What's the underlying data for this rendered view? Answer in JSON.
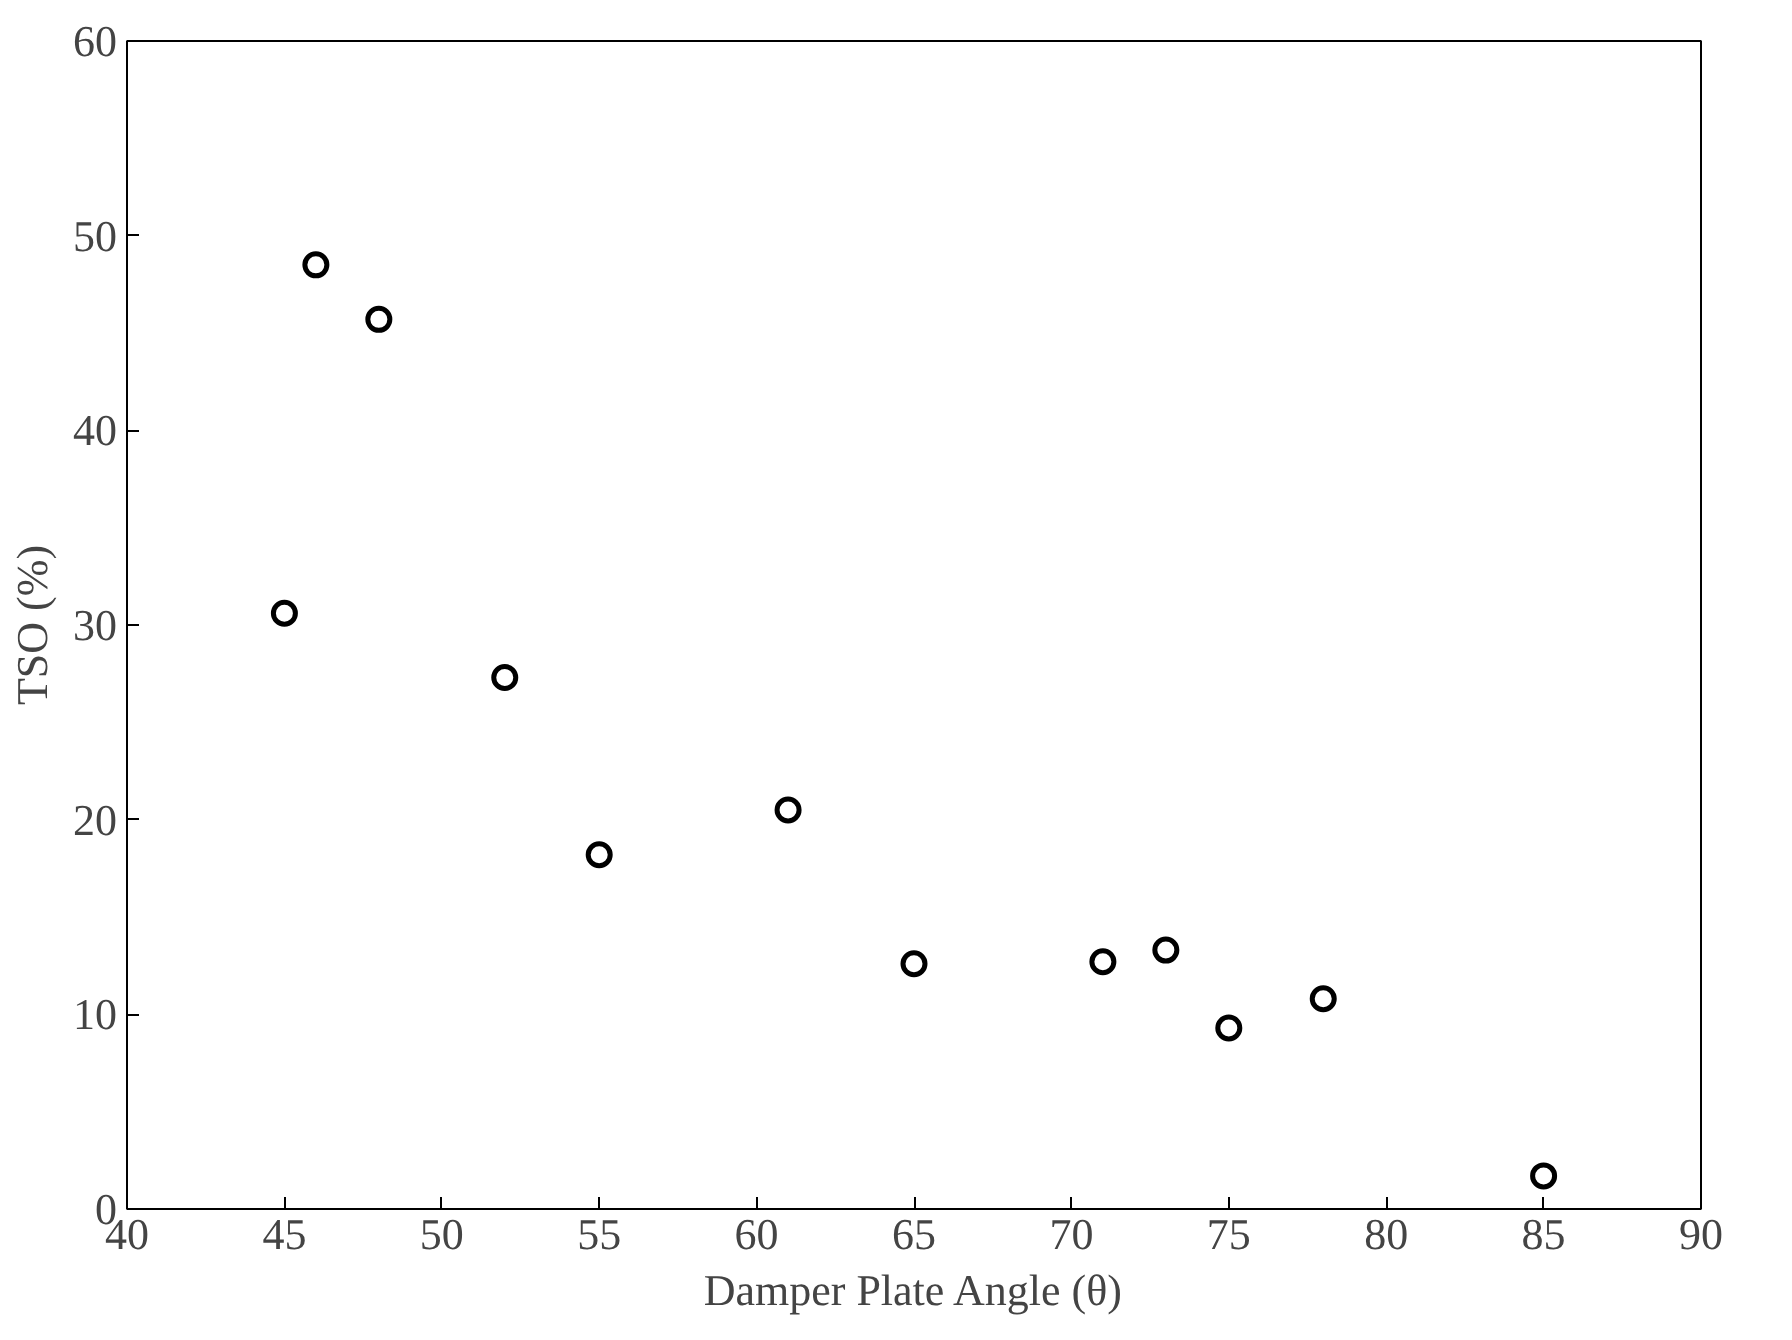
{
  "chart_data": {
    "type": "scatter",
    "xlabel": "Damper Plate Angle (θ)",
    "ylabel": "TSO (%)",
    "x": [
      45,
      46,
      48,
      52,
      55,
      61,
      65,
      71,
      73,
      75,
      78,
      85
    ],
    "series": [
      {
        "color": "#000000",
        "values": [
          30.6,
          48.5,
          45.7,
          27.3,
          18.2,
          20.5,
          12.6,
          12.7,
          13.3,
          9.3,
          10.8,
          1.7
        ]
      }
    ],
    "xlim": [
      40,
      90
    ],
    "ylim": [
      0,
      60
    ],
    "xticks": [
      40,
      45,
      50,
      55,
      60,
      65,
      70,
      75,
      80,
      85,
      90
    ],
    "yticks": [
      0,
      10,
      20,
      30,
      40,
      50,
      60
    ],
    "grid": false,
    "marker": "circle"
  }
}
